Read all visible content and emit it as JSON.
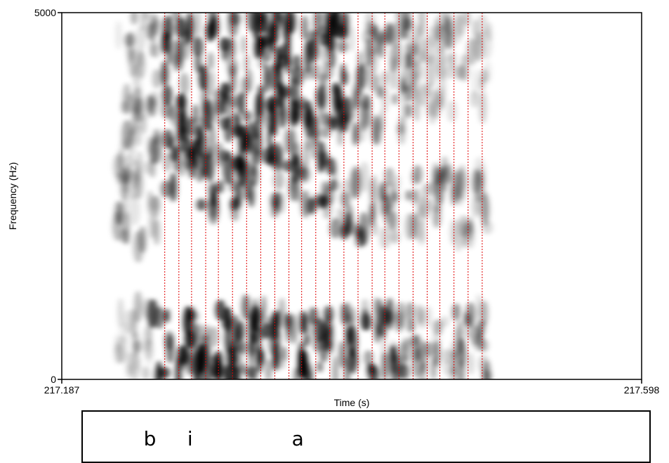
{
  "chart_data": {
    "type": "heatmap",
    "subtype": "spectrogram",
    "xlabel": "Time (s)",
    "ylabel": "Frequency (Hz)",
    "xlim": [
      217.187,
      217.598
    ],
    "ylim": [
      0,
      5000
    ],
    "x_tick_labels": [
      "217.187",
      "217.598"
    ],
    "y_tick_labels": [
      "0",
      "5000"
    ],
    "colormap": "grayscale (white = low energy, black = high energy)",
    "signal_extent_s": [
      217.226,
      217.496
    ],
    "pulse_marks_s": [
      217.26,
      217.27,
      217.279,
      217.289,
      217.298,
      217.308,
      217.318,
      217.328,
      217.338,
      217.348,
      217.357,
      217.367,
      217.377,
      217.387,
      217.397,
      217.407,
      217.416,
      217.426,
      217.436,
      217.446,
      217.455,
      217.465,
      217.475,
      217.485
    ],
    "pulse_mark_color": "#e00000",
    "energy_bands": [
      {
        "t0": 217.251,
        "t1": 217.36,
        "f0": 0,
        "f1": 1000,
        "intensity": 0.95
      },
      {
        "t0": 217.36,
        "t1": 217.43,
        "f0": 0,
        "f1": 1000,
        "intensity": 0.7
      },
      {
        "t0": 217.43,
        "t1": 217.49,
        "f0": 0,
        "f1": 1000,
        "intensity": 0.45
      },
      {
        "t0": 217.226,
        "t1": 217.251,
        "f0": 0,
        "f1": 1000,
        "intensity": 0.3
      },
      {
        "t0": 217.26,
        "t1": 217.38,
        "f0": 2300,
        "f1": 3100,
        "intensity": 0.75
      },
      {
        "t0": 217.38,
        "t1": 217.44,
        "f0": 1900,
        "f1": 2800,
        "intensity": 0.5
      },
      {
        "t0": 217.44,
        "t1": 217.49,
        "f0": 1900,
        "f1": 2900,
        "intensity": 0.35
      },
      {
        "t0": 217.26,
        "t1": 217.39,
        "f0": 3200,
        "f1": 5000,
        "intensity": 0.8
      },
      {
        "t0": 217.39,
        "t1": 217.44,
        "f0": 3300,
        "f1": 5000,
        "intensity": 0.45
      },
      {
        "t0": 217.44,
        "t1": 217.49,
        "f0": 3600,
        "f1": 5000,
        "intensity": 0.25
      },
      {
        "t0": 217.226,
        "t1": 217.255,
        "f0": 1800,
        "f1": 5000,
        "intensity": 0.35
      }
    ]
  },
  "textgrid": {
    "intervals": [
      {
        "label": "b",
        "time": 217.245
      },
      {
        "label": "i",
        "time": 217.276
      },
      {
        "label": "a",
        "time": 217.35
      }
    ]
  }
}
